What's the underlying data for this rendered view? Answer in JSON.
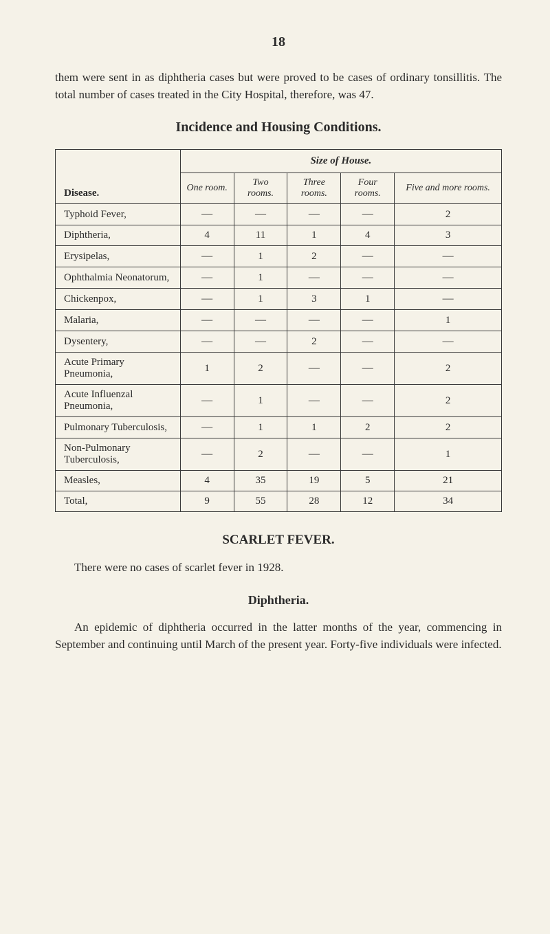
{
  "page_number": "18",
  "intro_paragraph": "them were sent in as diphtheria cases but were proved to be cases of ordinary tonsillitis. The total number of cases treated in the City Hospital, therefore, was 47.",
  "table_title": "Incidence and Housing Conditions.",
  "table": {
    "size_header": "Size of House.",
    "columns": {
      "disease": "Disease.",
      "one": "One room.",
      "two": "Two rooms.",
      "three": "Three rooms.",
      "four": "Four rooms.",
      "five": "Five and more rooms."
    },
    "rows": [
      {
        "disease": "Typhoid Fever,",
        "one": "—",
        "two": "—",
        "three": "—",
        "four": "—",
        "five": "2"
      },
      {
        "disease": "Diphtheria,",
        "one": "4",
        "two": "11",
        "three": "1",
        "four": "4",
        "five": "3"
      },
      {
        "disease": "Erysipelas,",
        "one": "—",
        "two": "1",
        "three": "2",
        "four": "—",
        "five": "—"
      },
      {
        "disease": "Ophthalmia Neonatorum,",
        "one": "—",
        "two": "1",
        "three": "—",
        "four": "—",
        "five": "—"
      },
      {
        "disease": "Chickenpox,",
        "one": "—",
        "two": "1",
        "three": "3",
        "four": "1",
        "five": "—"
      },
      {
        "disease": "Malaria,",
        "one": "—",
        "two": "—",
        "three": "—",
        "four": "—",
        "five": "1"
      },
      {
        "disease": "Dysentery,",
        "one": "—",
        "two": "—",
        "three": "2",
        "four": "—",
        "five": "—"
      },
      {
        "disease": "Acute Primary Pneumonia,",
        "one": "1",
        "two": "2",
        "three": "—",
        "four": "—",
        "five": "2"
      },
      {
        "disease": "Acute Influenzal Pneumonia,",
        "one": "—",
        "two": "1",
        "three": "—",
        "four": "—",
        "five": "2"
      },
      {
        "disease": "Pulmonary Tuberculosis,",
        "one": "—",
        "two": "1",
        "three": "1",
        "four": "2",
        "five": "2"
      },
      {
        "disease": "Non-Pulmonary Tuberculosis,",
        "one": "—",
        "two": "2",
        "three": "—",
        "four": "—",
        "five": "1"
      },
      {
        "disease": "Measles,",
        "one": "4",
        "two": "35",
        "three": "19",
        "four": "5",
        "five": "21"
      },
      {
        "disease": "Total,",
        "one": "9",
        "two": "55",
        "three": "28",
        "four": "12",
        "five": "34"
      }
    ]
  },
  "scarlet_fever_heading": "SCARLET FEVER.",
  "scarlet_fever_text": "There were no cases of scarlet fever in 1928.",
  "diphtheria_heading": "Diphtheria.",
  "diphtheria_text": "An epidemic of diphtheria occurred in the latter months of the year, commencing in September and continuing until March of the present year. Forty-five individuals were infected."
}
